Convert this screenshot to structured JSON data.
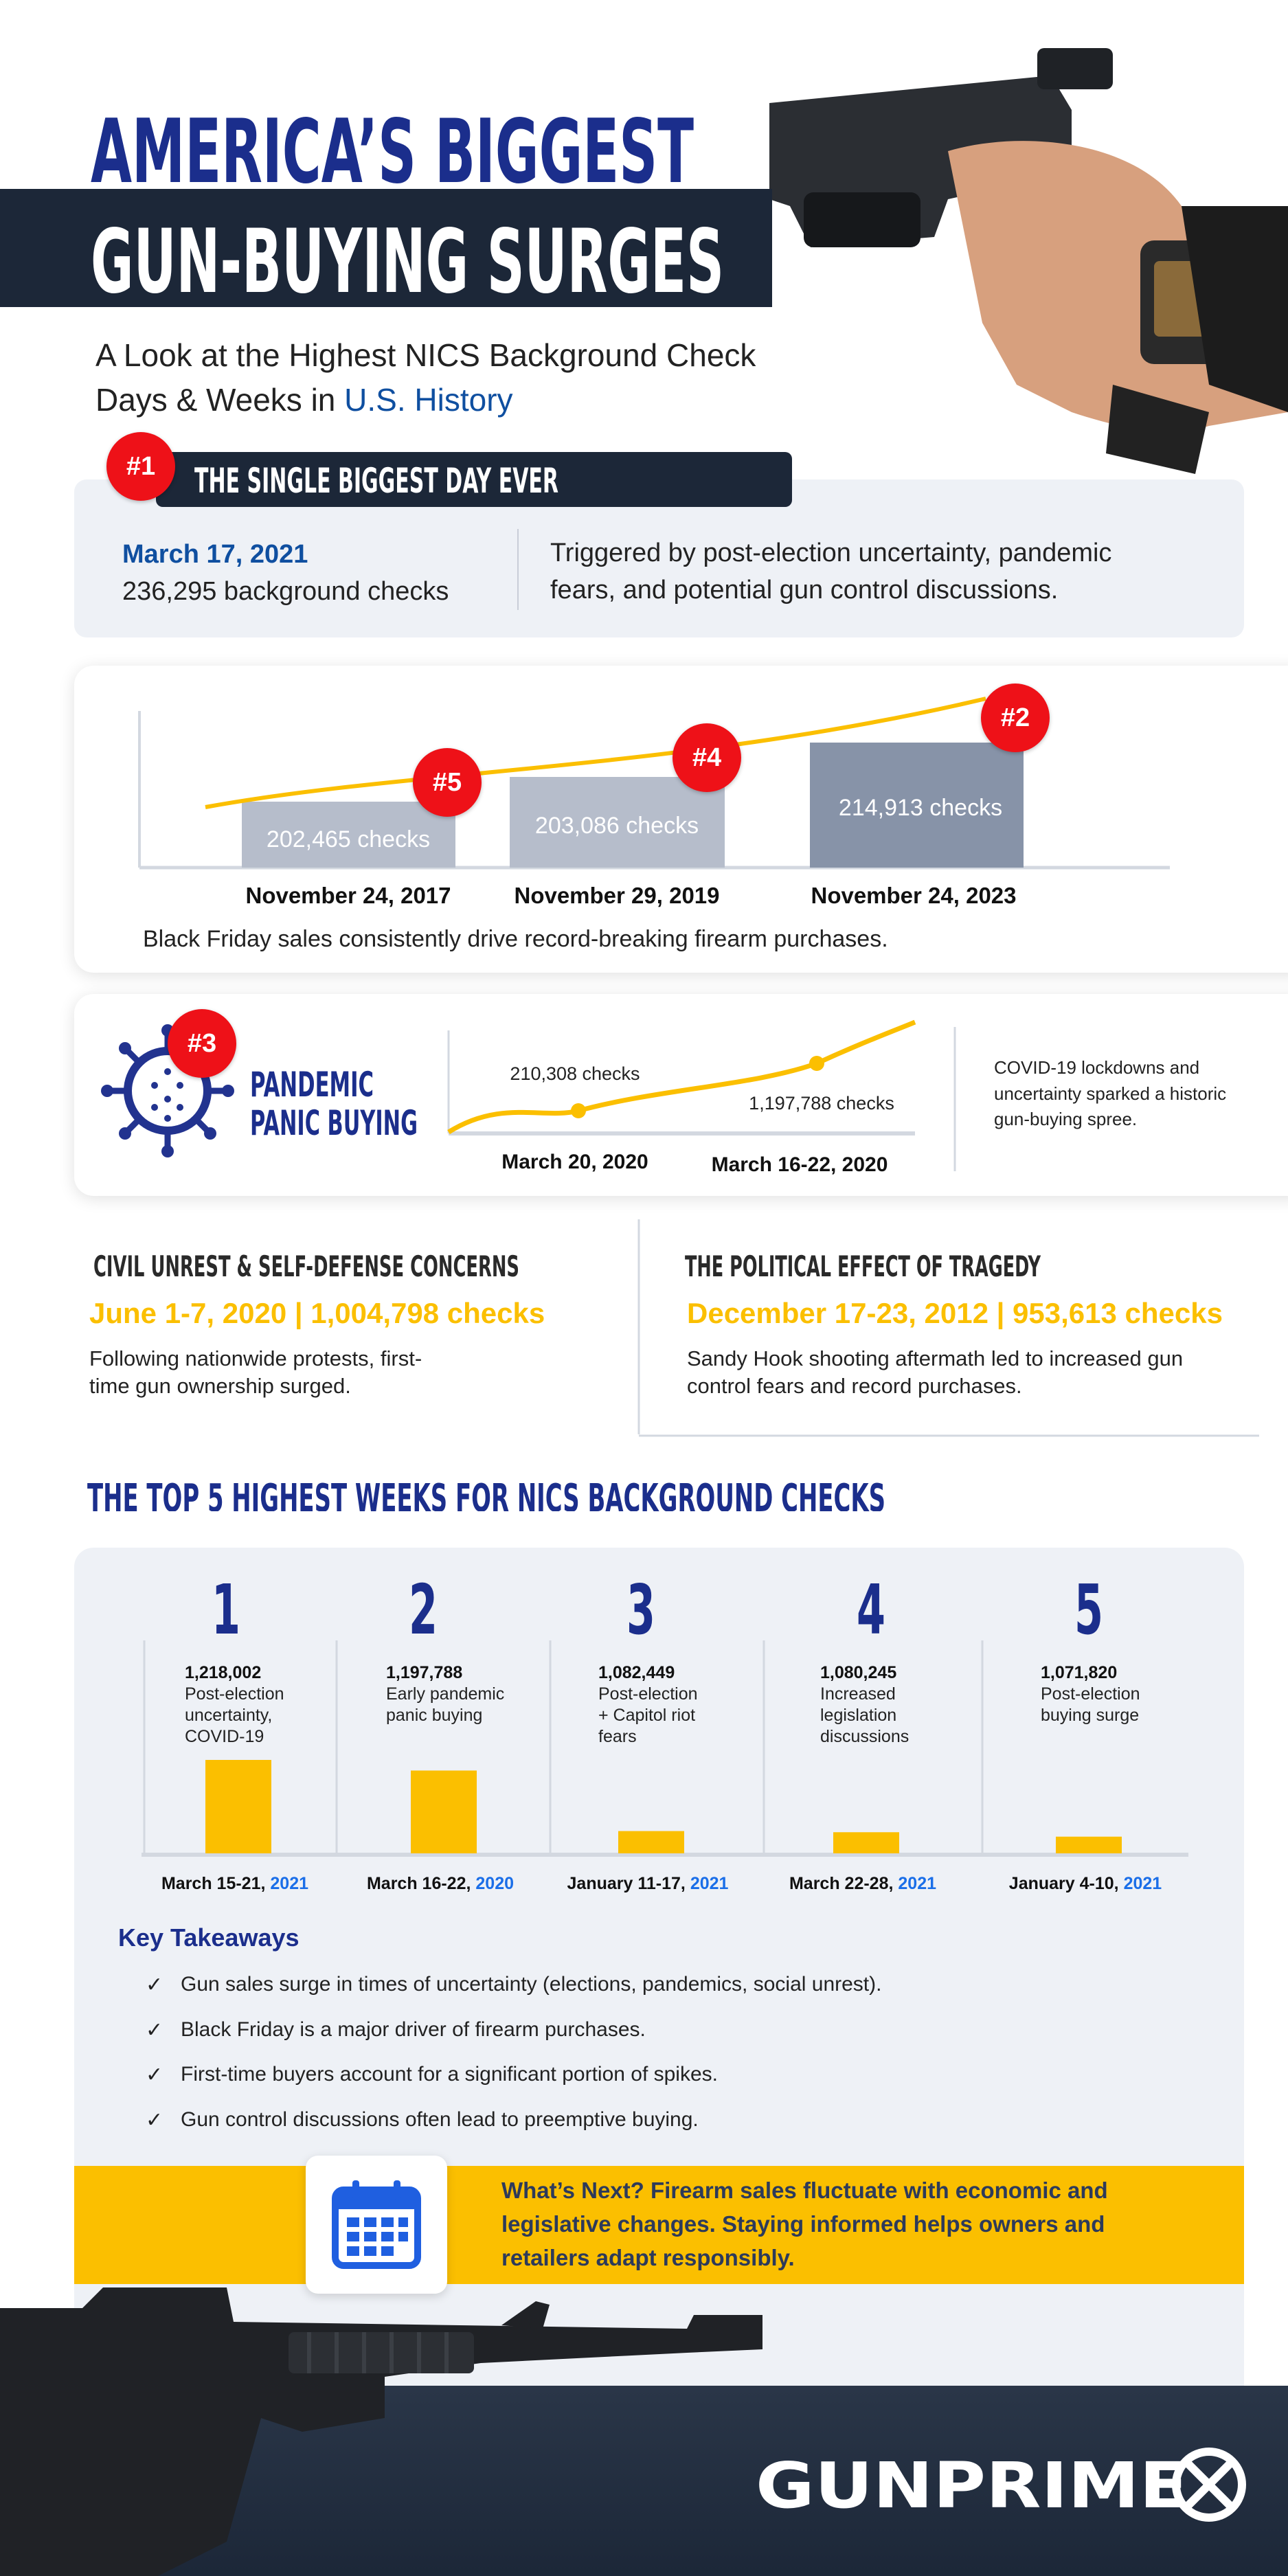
{
  "header": {
    "title_line1": "AMERICA’S BIGGEST",
    "title_line2": "GUN-BUYING SURGES",
    "subtitle_line1": "A Look at the Highest NICS Background Check",
    "subtitle_line2_prefix": "Days & Weeks in ",
    "subtitle_line2_highlight": "U.S. History"
  },
  "biggest_day": {
    "rank": "#1",
    "heading": "THE SINGLE BIGGEST DAY EVER",
    "date": "March 17, 2021",
    "checks": "236,295 background checks",
    "description_line1": "Triggered by post-election uncertainty, pandemic",
    "description_line2": "fears, and potential gun control discussions."
  },
  "black_friday": {
    "items": [
      {
        "rank": "#5",
        "date": "November 24, 2017",
        "label": "202,465  checks",
        "value": 202465
      },
      {
        "rank": "#4",
        "date": "November 29, 2019",
        "label": "203,086 checks",
        "value": 203086
      },
      {
        "rank": "#2",
        "date": "November 24, 2023",
        "label": "214,913 checks",
        "value": 214913
      }
    ],
    "caption": "Black Friday sales consistently drive record-breaking firearm purchases."
  },
  "pandemic": {
    "rank": "#3",
    "title_line1": "PANDEMIC",
    "title_line2": "PANIC BUYING",
    "points": [
      {
        "label": "210,308 checks",
        "date": "March 20, 2020"
      },
      {
        "label": "1,197,788 checks",
        "date": "March 16-22, 2020"
      }
    ],
    "description_line1": "COVID-19 lockdowns and",
    "description_line2": "uncertainty sparked a historic",
    "description_line3": "gun-buying spree."
  },
  "civil_unrest": {
    "heading": "CIVIL UNREST & SELF-DEFENSE CONCERNS",
    "stat": "June 1-7, 2020 | 1,004,798 checks",
    "body_line1": "Following nationwide protests, first-",
    "body_line2": "time gun ownership surged."
  },
  "tragedy": {
    "heading": "THE POLITICAL EFFECT OF TRAGEDY",
    "stat": "December 17-23, 2012 | 953,613 checks",
    "body_line1": "Sandy Hook shooting aftermath led to increased gun",
    "body_line2": "control fears and record purchases."
  },
  "top5": {
    "heading": "THE TOP 5 HIGHEST WEEKS FOR NICS BACKGROUND CHECKS",
    "weeks": [
      {
        "rank": "1",
        "value_label": "1,218,002",
        "value": 1218002,
        "desc": [
          "Post-election",
          "uncertainty,",
          "COVID-19"
        ],
        "date": "March 15-21, ",
        "year": "2021"
      },
      {
        "rank": "2",
        "value_label": "1,197,788",
        "value": 1197788,
        "desc": [
          "Early pandemic",
          "panic buying"
        ],
        "date": "March 16-22, ",
        "year": "2020"
      },
      {
        "rank": "3",
        "value_label": "1,082,449",
        "value": 1082449,
        "desc": [
          "Post-election",
          "+ Capitol riot",
          "fears"
        ],
        "date": "January 11-17, ",
        "year": "2021"
      },
      {
        "rank": "4",
        "value_label": "1,080,245",
        "value": 1080245,
        "desc": [
          "Increased",
          "legislation",
          "discussions"
        ],
        "date": "March 22-28, ",
        "year": "2021"
      },
      {
        "rank": "5",
        "value_label": "1,071,820",
        "value": 1071820,
        "desc": [
          "Post-election",
          "buying surge"
        ],
        "date": "January 4-10, ",
        "year": "2021"
      }
    ]
  },
  "takeaways": {
    "heading": "Key Takeaways",
    "check_icon": "check-icon",
    "items": [
      "Gun sales surge in times of uncertainty (elections, pandemics, social unrest).",
      "Black Friday is a major driver of firearm purchases.",
      "First-time buyers account for a significant portion of spikes.",
      "Gun control discussions often lead to preemptive buying."
    ]
  },
  "whats_next": {
    "icon": "calendar-icon",
    "line1": "What’s Next? Firearm sales fluctuate with economic and",
    "line2": "legislative changes. Staying informed helps owners and",
    "line3": "retailers adapt responsibly."
  },
  "footer": {
    "logo": "GUNPRIME"
  },
  "colors": {
    "navy": "#1b2e8c",
    "dark_band": "#1c2738",
    "red": "#ee1118",
    "yellow": "#fbbf00",
    "year_blue": "#1a6ee8",
    "date_blue": "#0f4fa0"
  }
}
